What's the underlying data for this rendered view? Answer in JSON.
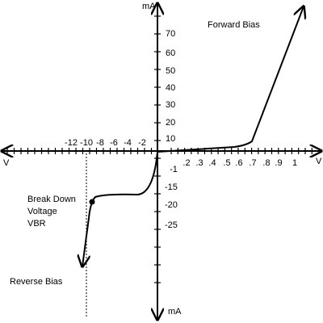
{
  "axes": {
    "y_top": "mA",
    "y_bottom": "mA",
    "x_left": "V",
    "x_right": "V"
  },
  "y_pos_ticks": [
    "70",
    "60",
    "50",
    "40",
    "30",
    "20",
    "10"
  ],
  "y_neg_ticks": [
    "-15",
    "-20",
    "-25"
  ],
  "x_neg_ticks": [
    "-12",
    "-10",
    "-8",
    "-6",
    "-4",
    "-2"
  ],
  "x_pos_ticks": [
    "-1",
    ".2",
    ".3",
    ".4",
    ".5",
    ".6",
    ".7",
    ".8",
    ".9",
    "1"
  ],
  "annotations": {
    "forward": "Forward Bias",
    "breakdown": [
      "Break Down",
      "Voltage",
      "VBR"
    ],
    "reverse": "Reverse Bias"
  }
}
